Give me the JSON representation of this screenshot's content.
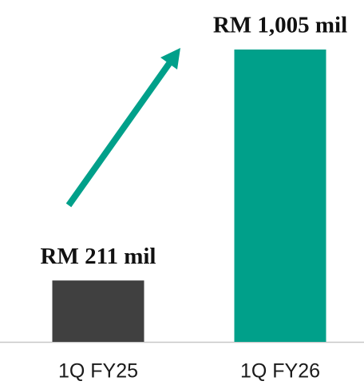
{
  "chart_data": {
    "type": "bar",
    "categories": [
      "1Q FY25",
      "1Q FY26"
    ],
    "values": [
      211,
      1005
    ],
    "value_labels": [
      "RM 211 mil",
      "RM 1,005 mil"
    ],
    "colors": [
      "#404040",
      "#00a08a"
    ]
  }
}
